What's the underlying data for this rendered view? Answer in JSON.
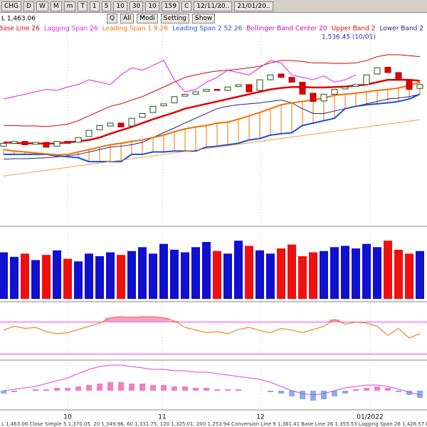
{
  "toolbar": {
    "period": "CHG",
    "units": [
      "D",
      "W",
      "M",
      "m",
      "T"
    ],
    "minutes": [
      "1",
      "5",
      "10",
      "30"
    ],
    "count_a": "10",
    "count_b": "159",
    "mode": "C",
    "date_from": "12/11/20..",
    "date_to": "21/01/20..",
    "buttons": [
      "Q",
      "All",
      "Modi",
      "Setting",
      "Show"
    ]
  },
  "chart_data": {
    "type": "candlestick",
    "low_label": "L 1,463.06",
    "annotation": "1,536.45 (10/01)",
    "legend": [
      {
        "name": "Base Line 26",
        "color": "#e00000"
      },
      {
        "name": "Lagging Span 26",
        "color": "#e020e0"
      },
      {
        "name": "Leading Span 1 9,26",
        "color": "#f07000"
      },
      {
        "name": "Leading Span 2 52 26",
        "color": "#2050d0"
      },
      {
        "name": "Bollinger Band Center 20",
        "color": "#c000c0"
      },
      {
        "name": "Upper Band 2",
        "color": "#e00000"
      },
      {
        "name": "Lower Band 2",
        "color": "#202080"
      }
    ],
    "x_labels": [
      "10",
      "11",
      "12",
      "01/2022"
    ],
    "ylim": [
      1200,
      1580
    ],
    "open": [
      1362,
      1368,
      1372,
      1366,
      1370,
      1362,
      1372,
      1370,
      1382,
      1396,
      1404,
      1410,
      1404,
      1422,
      1432,
      1446,
      1452,
      1466,
      1470,
      1476,
      1480,
      1478,
      1486,
      1490,
      1478,
      1500,
      1512,
      1505,
      1495,
      1472,
      1456,
      1470,
      1481,
      1486,
      1490,
      1512,
      1526,
      1515,
      1500,
      1482
    ],
    "close": [
      1368,
      1372,
      1365,
      1370,
      1360,
      1372,
      1368,
      1380,
      1395,
      1405,
      1410,
      1402,
      1420,
      1430,
      1445,
      1450,
      1465,
      1470,
      1475,
      1480,
      1478,
      1485,
      1490,
      1475,
      1500,
      1510,
      1505,
      1495,
      1470,
      1455,
      1470,
      1480,
      1485,
      1490,
      1510,
      1525,
      1515,
      1500,
      1480,
      1490
    ],
    "lines": [
      {
        "color": "#e00000",
        "width": 1,
        "values": [
          1405,
          1405,
          1404,
          1404,
          1403,
          1405,
          1408,
          1415,
          1425,
          1435,
          1445,
          1450,
          1458,
          1465,
          1475,
          1485,
          1495,
          1505,
          1510,
          1515,
          1518,
          1520,
          1522,
          1525,
          1528,
          1535,
          1540,
          1540,
          1538,
          1535,
          1535,
          1534,
          1534,
          1535,
          1540,
          1548,
          1552,
          1552,
          1550,
          1548
        ]
      },
      {
        "color": "#e00000",
        "width": 2.5,
        "values": [
          1370,
          1369,
          1368,
          1368,
          1367,
          1368,
          1370,
          1372,
          1375,
          1380,
          1388,
          1395,
          1402,
          1410,
          1418,
          1425,
          1432,
          1440,
          1445,
          1450,
          1455,
          1460,
          1465,
          1470,
          1475,
          1480,
          1483,
          1485,
          1485,
          1484,
          1484,
          1485,
          1486,
          1488,
          1490,
          1495,
          1500,
          1500,
          1500,
          1498
        ]
      },
      {
        "color": "#202080",
        "width": 1,
        "values": [
          1335,
          1336,
          1336,
          1337,
          1338,
          1340,
          1342,
          1345,
          1350,
          1355,
          1360,
          1362,
          1365,
          1370,
          1380,
          1390,
          1400,
          1410,
          1420,
          1430,
          1440,
          1445,
          1448,
          1450,
          1452,
          1455,
          1458,
          1452,
          1440,
          1430,
          1430,
          1435,
          1440,
          1445,
          1450,
          1455,
          1460,
          1462,
          1465,
          1470
        ]
      },
      {
        "color": "#2050d0",
        "width": 2,
        "values": [
          1345,
          1345,
          1345,
          1345,
          1345,
          1342,
          1340,
          1338,
          1330,
          1330,
          1330,
          1330,
          1345,
          1345,
          1350,
          1350,
          1352,
          1352,
          1352,
          1360,
          1362,
          1365,
          1368,
          1375,
          1378,
          1385,
          1388,
          1390,
          1405,
          1410,
          1415,
          1420,
          1440,
          1445,
          1448,
          1450,
          1452,
          1455,
          1460,
          1470
        ]
      },
      {
        "color": "#f07000",
        "width": 2,
        "values": [
          1355,
          1352,
          1350,
          1348,
          1346,
          1344,
          1345,
          1350,
          1355,
          1360,
          1365,
          1368,
          1372,
          1375,
          1380,
          1385,
          1392,
          1398,
          1402,
          1405,
          1410,
          1412,
          1418,
          1425,
          1432,
          1440,
          1448,
          1452,
          1455,
          1458,
          1462,
          1468,
          1470,
          1472,
          1475,
          1478,
          1480,
          1483,
          1488,
          1495
        ]
      },
      {
        "color": "#f0a040",
        "width": 1,
        "values": [
          1300,
          1303,
          1306,
          1309,
          1312,
          1315,
          1318,
          1321,
          1324,
          1327,
          1330,
          1333,
          1336,
          1339,
          1342,
          1345,
          1348,
          1351,
          1354,
          1357,
          1360,
          1363,
          1366,
          1369,
          1372,
          1375,
          1378,
          1381,
          1384,
          1387,
          1390,
          1393,
          1396,
          1399,
          1402,
          1405,
          1408,
          1411,
          1414,
          1417
        ]
      },
      {
        "color": "#e020e0",
        "width": 1,
        "values": [
          1460,
          1465,
          1470,
          1475,
          1480,
          1478,
          1485,
          1490,
          1500,
          1495,
          1490,
          1510,
          1525,
          1520,
          1530,
          1540,
          1500,
          1475,
          1480,
          1495,
          1505,
          1520,
          1515,
          1510,
          1525,
          1540,
          1535,
          1510,
          1505,
          1500,
          1508,
          1495,
          1500,
          1510,
          null,
          null,
          null,
          null,
          null,
          null
        ]
      }
    ],
    "volume": [
      72,
      65,
      70,
      60,
      68,
      75,
      62,
      58,
      70,
      66,
      72,
      68,
      74,
      80,
      70,
      85,
      76,
      72,
      80,
      88,
      74,
      70,
      90,
      82,
      75,
      70,
      78,
      84,
      66,
      72,
      74,
      80,
      82,
      78,
      85,
      80,
      90,
      76,
      70,
      74
    ],
    "volume_lim": [
      0,
      110
    ],
    "oscillator": [
      55,
      62,
      58,
      60,
      52,
      48,
      50,
      56,
      62,
      68,
      78,
      80,
      79,
      80,
      80,
      78,
      72,
      60,
      55,
      50,
      52,
      48,
      56,
      60,
      54,
      50,
      58,
      55,
      50,
      56,
      62,
      75,
      66,
      70,
      68,
      62,
      45,
      58,
      40,
      48
    ],
    "oscillator_lim": [
      0,
      100
    ],
    "oscillator_levels": [
      70,
      10
    ],
    "macd_hist": [
      -2,
      -1,
      0,
      1,
      1,
      2,
      2,
      3,
      4,
      5,
      6,
      6,
      5,
      5,
      4,
      4,
      3,
      3,
      2,
      2,
      1,
      1,
      1,
      0,
      0,
      -1,
      -2,
      -4,
      -6,
      -7,
      -6,
      -4,
      -2,
      1,
      2,
      3,
      2,
      -1,
      -3,
      -5
    ],
    "macd_line": [
      0,
      1,
      2,
      3,
      5,
      7,
      9,
      12,
      15,
      17,
      18,
      18,
      17,
      16,
      15,
      15,
      14,
      14,
      13,
      13,
      12,
      11,
      10,
      9,
      8,
      6,
      3,
      0,
      -2,
      -3,
      -2,
      0,
      2,
      3,
      4,
      4,
      3,
      1,
      -1,
      -3
    ],
    "macd_lim": [
      -12,
      20
    ]
  },
  "status": "L 1,463.06 Close Simple 5 1,370.05, 20 1,349.96, 60 1,331.75, 120 1,325.01, 200 1,253.94 Conversion Line 9 1,361.41 Base Line 26 1,355.53 Lagging Span 26 1,426.57 Leading Span 1 9,26 1,322.57 Leading"
}
